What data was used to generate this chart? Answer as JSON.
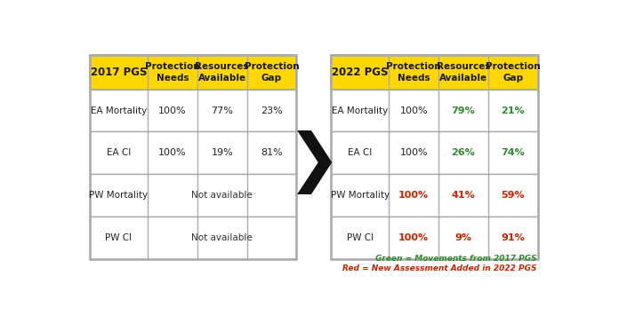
{
  "background_color": "#ffffff",
  "header_bg": "#FFD700",
  "header_text_color": "#1a1a1a",
  "table_border_color": "#aaaaaa",
  "arrow_color": "#111111",
  "left_table": {
    "title": "2017 PGS",
    "columns": [
      "Protection\nNeeds",
      "Resources\nAvailable",
      "Protection\nGap"
    ],
    "rows": [
      {
        "label": "EA Mortality",
        "values": [
          "100%",
          "77%",
          "23%"
        ],
        "colors": [
          "#222222",
          "#222222",
          "#222222"
        ],
        "na": false
      },
      {
        "label": "EA CI",
        "values": [
          "100%",
          "19%",
          "81%"
        ],
        "colors": [
          "#222222",
          "#222222",
          "#222222"
        ],
        "na": false
      },
      {
        "label": "PW Mortality",
        "values": [
          null,
          "Not available",
          null
        ],
        "colors": [
          null,
          "#333333",
          null
        ],
        "na": true
      },
      {
        "label": "PW CI",
        "values": [
          null,
          "Not available",
          null
        ],
        "colors": [
          null,
          "#333333",
          null
        ],
        "na": true
      }
    ]
  },
  "right_table": {
    "title": "2022 PGS",
    "columns": [
      "Protection\nNeeds",
      "Resources\nAvailable",
      "Protection\nGap"
    ],
    "rows": [
      {
        "label": "EA Mortality",
        "values": [
          "100%",
          "79%",
          "21%"
        ],
        "colors": [
          "#222222",
          "#2e8b2e",
          "#2e8b2e"
        ],
        "na": false
      },
      {
        "label": "EA CI",
        "values": [
          "100%",
          "26%",
          "74%"
        ],
        "colors": [
          "#222222",
          "#2e8b2e",
          "#2e8b2e"
        ],
        "na": false
      },
      {
        "label": "PW Mortality",
        "values": [
          "100%",
          "41%",
          "59%"
        ],
        "colors": [
          "#cc2200",
          "#cc2200",
          "#cc2200"
        ],
        "na": false
      },
      {
        "label": "PW CI",
        "values": [
          "100%",
          "9%",
          "91%"
        ],
        "colors": [
          "#cc2200",
          "#cc2200",
          "#cc2200"
        ],
        "na": false
      }
    ]
  },
  "legend": [
    {
      "text": "Green = Movements from 2017 PGS",
      "color": "#2e8b2e"
    },
    {
      "text": "Red = New Assessment Added in 2022 PGS",
      "color": "#cc2200"
    }
  ]
}
